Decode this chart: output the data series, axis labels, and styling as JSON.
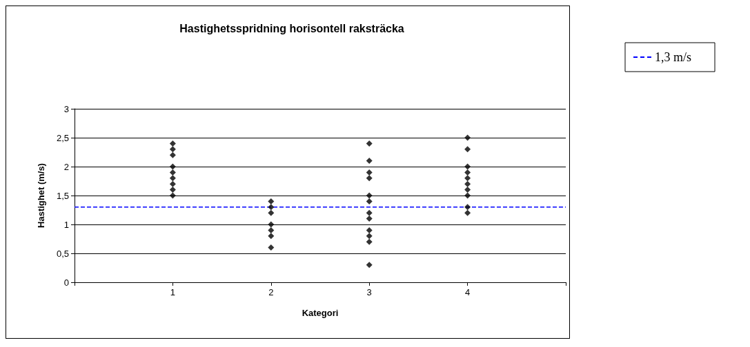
{
  "chart_data": {
    "type": "scatter",
    "title": "Hastighetsspridning horisontell raksträcka",
    "xlabel": "Kategori",
    "ylabel": "Hastighet (m/s)",
    "x": [
      1,
      1,
      1,
      1,
      1,
      1,
      1,
      1,
      1,
      2,
      2,
      2,
      2,
      2,
      2,
      2,
      3,
      3,
      3,
      3,
      3,
      3,
      3,
      3,
      3,
      3,
      3,
      3,
      4,
      4,
      4,
      4,
      4,
      4,
      4,
      4,
      4,
      4
    ],
    "values": [
      2.4,
      2.3,
      2.2,
      2.0,
      1.9,
      1.8,
      1.7,
      1.6,
      1.5,
      1.4,
      1.3,
      1.2,
      1.0,
      0.9,
      0.8,
      0.6,
      2.4,
      2.1,
      1.9,
      1.8,
      1.5,
      1.4,
      1.2,
      1.1,
      0.9,
      0.8,
      0.7,
      0.3,
      2.5,
      2.3,
      2.0,
      1.9,
      1.8,
      1.7,
      1.6,
      1.5,
      1.3,
      1.2
    ],
    "color": "#000000",
    "marker": "diamond",
    "xlim": [
      0,
      5
    ],
    "xticks": [
      {
        "value": 0,
        "label": null
      },
      1,
      2,
      3,
      4,
      {
        "value": 5,
        "label": null
      }
    ],
    "ylim": [
      0,
      3
    ],
    "yticks": [
      {
        "value": 0,
        "label": "0"
      },
      {
        "value": 0.5,
        "label": "0,5"
      },
      {
        "value": 1,
        "label": "1"
      },
      {
        "value": 1.5,
        "label": "1,5"
      },
      {
        "value": 2,
        "label": "2"
      },
      {
        "value": 2.5,
        "label": "2,5"
      },
      {
        "value": 3,
        "label": "3"
      }
    ],
    "grid": "y",
    "legend": "right",
    "ref_lines": [
      {
        "axis": "y",
        "value": 1.3,
        "label": "1,3 m/s",
        "color": "#0000ff",
        "line_style": "dashed"
      }
    ]
  }
}
